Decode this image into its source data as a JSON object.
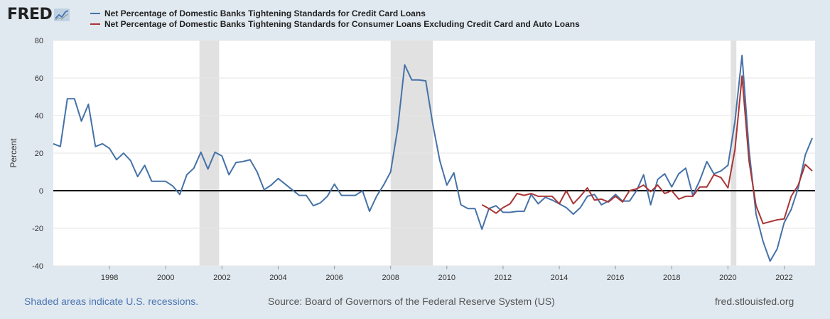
{
  "header": {
    "logo_text": "FRED",
    "logo_icon": "fred-graph-icon"
  },
  "footer": {
    "recession_note": "Shaded areas indicate U.S. recessions.",
    "source": "Source: Board of Governors of the Federal Reserve System (US)",
    "url": "fred.stlouisfed.org"
  },
  "chart_data": {
    "type": "line",
    "title": "",
    "xlabel": "",
    "ylabel": "Percent",
    "xlim": [
      1996.0,
      2023.1
    ],
    "ylim": [
      -40,
      80
    ],
    "yticks": [
      "80",
      "60",
      "40",
      "20",
      "0",
      "-20",
      "-40"
    ],
    "xticks": [
      "1998",
      "2000",
      "2002",
      "2004",
      "2006",
      "2008",
      "2010",
      "2012",
      "2014",
      "2016",
      "2018",
      "2020",
      "2022"
    ],
    "grid": true,
    "legend_position": "top-left",
    "zero_line": true,
    "recessions": [
      [
        2001.2,
        2001.9
      ],
      [
        2008.0,
        2009.5
      ],
      [
        2020.1,
        2020.3
      ]
    ],
    "series": [
      {
        "name": "Net Percentage of Domestic Banks Tightening Standards for Credit Card Loans",
        "color": "#4572a7",
        "x": [
          1996.0,
          1996.25,
          1996.5,
          1996.75,
          1997.0,
          1997.25,
          1997.5,
          1997.75,
          1998.0,
          1998.25,
          1998.5,
          1998.75,
          1999.0,
          1999.25,
          1999.5,
          1999.75,
          2000.0,
          2000.25,
          2000.5,
          2000.75,
          2001.0,
          2001.25,
          2001.5,
          2001.75,
          2002.0,
          2002.25,
          2002.5,
          2002.75,
          2003.0,
          2003.25,
          2003.5,
          2003.75,
          2004.0,
          2004.25,
          2004.5,
          2004.75,
          2005.0,
          2005.25,
          2005.5,
          2005.75,
          2006.0,
          2006.25,
          2006.5,
          2006.75,
          2007.0,
          2007.25,
          2007.5,
          2007.75,
          2008.0,
          2008.25,
          2008.5,
          2008.75,
          2009.0,
          2009.25,
          2009.5,
          2009.75,
          2010.0,
          2010.25,
          2010.5,
          2010.75,
          2011.0,
          2011.25,
          2011.5,
          2011.75,
          2012.0,
          2012.25,
          2012.5,
          2012.75,
          2013.0,
          2013.25,
          2013.5,
          2013.75,
          2014.0,
          2014.25,
          2014.5,
          2014.75,
          2015.0,
          2015.25,
          2015.5,
          2015.75,
          2016.0,
          2016.25,
          2016.5,
          2016.75,
          2017.0,
          2017.25,
          2017.5,
          2017.75,
          2018.0,
          2018.25,
          2018.5,
          2018.75,
          2019.0,
          2019.25,
          2019.5,
          2019.75,
          2020.0,
          2020.25,
          2020.5,
          2020.75,
          2021.0,
          2021.25,
          2021.5,
          2021.75,
          2022.0,
          2022.25,
          2022.5,
          2022.75,
          2023.0
        ],
        "values": [
          25,
          23.5,
          49,
          49,
          37,
          46,
          23.5,
          25,
          22.5,
          16.5,
          20,
          16,
          7.5,
          13.5,
          5,
          5,
          5,
          2.5,
          -2,
          8.5,
          12,
          20.5,
          11.5,
          20.5,
          18.5,
          8.5,
          15,
          15.5,
          16.5,
          10,
          0.5,
          3,
          6.5,
          3.5,
          0.5,
          -2.5,
          -2.5,
          -8,
          -6.5,
          -3,
          3.5,
          -2.5,
          -2.5,
          -2.5,
          0,
          -11,
          -3,
          3,
          10,
          33,
          67,
          59,
          59,
          58.5,
          35.5,
          16,
          3,
          9.5,
          -7.5,
          -9.5,
          -9.5,
          -20.5,
          -9.5,
          -8,
          -11.5,
          -11.5,
          -11,
          -11,
          -2,
          -7,
          -3.5,
          -5,
          -7,
          -9,
          -12.5,
          -9,
          -3,
          -2,
          -7.5,
          -5.5,
          -2,
          -5.5,
          -5.5,
          0,
          8.5,
          -7.5,
          6,
          9,
          2,
          9,
          12,
          -2.5,
          5.5,
          15.5,
          9,
          10.5,
          13.5,
          37,
          72,
          22,
          -12.5,
          -27,
          -37.5,
          -31,
          -17,
          -10,
          1.5,
          19,
          28
        ]
      },
      {
        "name": "Net Percentage of Domestic Banks Tightening Standards for Consumer Loans Excluding Credit Card and Auto Loans",
        "color": "#aa3535",
        "x": [
          2011.25,
          2011.5,
          2011.75,
          2012.0,
          2012.25,
          2012.5,
          2012.75,
          2013.0,
          2013.25,
          2013.5,
          2013.75,
          2014.0,
          2014.25,
          2014.5,
          2014.75,
          2015.0,
          2015.25,
          2015.5,
          2015.75,
          2016.0,
          2016.25,
          2016.5,
          2016.75,
          2017.0,
          2017.25,
          2017.5,
          2017.75,
          2018.0,
          2018.25,
          2018.5,
          2018.75,
          2019.0,
          2019.25,
          2019.5,
          2019.75,
          2020.0,
          2020.25,
          2020.5,
          2020.75,
          2021.0,
          2021.25,
          2021.5,
          2021.75,
          2022.0,
          2022.25,
          2022.5,
          2022.75,
          2023.0
        ],
        "values": [
          -7.5,
          -9.5,
          -12,
          -9,
          -7,
          -1.5,
          -2.5,
          -1.5,
          -3,
          -3,
          -3,
          -7,
          0,
          -7,
          -3,
          1.5,
          -5,
          -4.5,
          -6,
          -3,
          -6,
          0,
          1,
          3,
          -0.5,
          3,
          -1.5,
          0,
          -4.5,
          -3,
          -3,
          2,
          2,
          8.5,
          7,
          1.5,
          22,
          61,
          16,
          -8,
          -17.5,
          -16.5,
          -15.5,
          -15,
          -3,
          3,
          14,
          10.5
        ]
      }
    ]
  }
}
